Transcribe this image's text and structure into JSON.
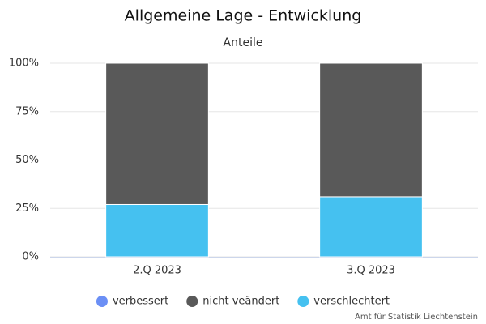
{
  "chart_data": {
    "type": "stacked_bar",
    "title": "Allgemeine Lage - Entwicklung",
    "subtitle": "Anteile",
    "categories": [
      "2.Q 2023",
      "3.Q 2023"
    ],
    "series": [
      {
        "name": "verbessert",
        "color": "#6b8ff5",
        "values": [
          0,
          0
        ]
      },
      {
        "name": "nicht veändert",
        "color": "#595959",
        "values": [
          73,
          69
        ]
      },
      {
        "name": "verschlechtert",
        "color": "#45c1f0",
        "values": [
          27,
          31
        ]
      }
    ],
    "ylim": [
      0,
      100
    ],
    "yticks": [
      {
        "value": 0,
        "label": "0%"
      },
      {
        "value": 25,
        "label": "25%"
      },
      {
        "value": 50,
        "label": "50%"
      },
      {
        "value": 75,
        "label": "75%"
      },
      {
        "value": 100,
        "label": "100%"
      }
    ],
    "grid": true,
    "credits": "Amt für Statistik Liechtenstein"
  }
}
